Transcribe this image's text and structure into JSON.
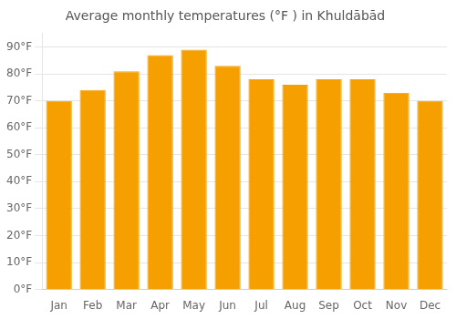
{
  "chart_data": {
    "type": "bar",
    "title": "Average monthly temperatures (°F ) in Khuldābād",
    "categories": [
      "Jan",
      "Feb",
      "Mar",
      "Apr",
      "May",
      "Jun",
      "Jul",
      "Aug",
      "Sep",
      "Oct",
      "Nov",
      "Dec"
    ],
    "values": [
      70,
      74,
      81,
      87,
      89,
      83,
      78,
      76,
      78,
      78,
      73,
      70
    ],
    "color": "#F5A000",
    "ylim": [
      0,
      95
    ],
    "yticks": [
      {
        "value": 0,
        "label": "0°F"
      },
      {
        "value": 10,
        "label": "10°F"
      },
      {
        "value": 20,
        "label": "20°F"
      },
      {
        "value": 30,
        "label": "30°F"
      },
      {
        "value": 40,
        "label": "40°F"
      },
      {
        "value": 50,
        "label": "50°F"
      },
      {
        "value": 60,
        "label": "60°F"
      },
      {
        "value": 70,
        "label": "70°F"
      },
      {
        "value": 80,
        "label": "80°F"
      },
      {
        "value": 90,
        "label": "90°F"
      }
    ],
    "grid": true
  }
}
